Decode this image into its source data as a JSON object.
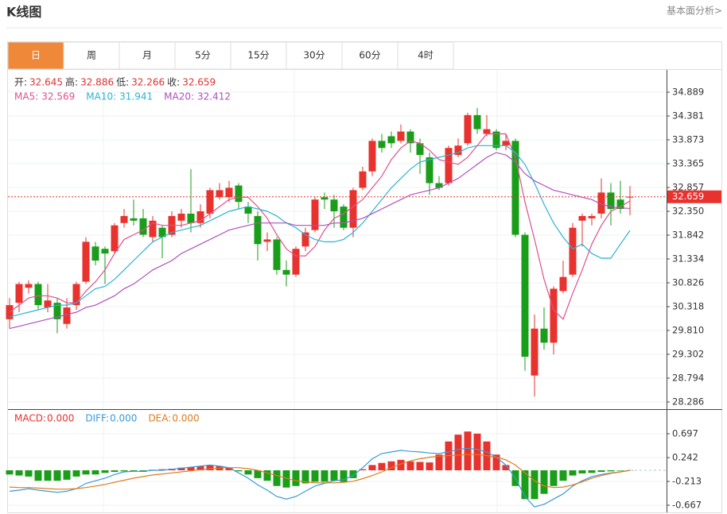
{
  "header": {
    "title": "K线图",
    "link": "基本面分析>"
  },
  "tabs": [
    "日",
    "周",
    "月",
    "5分",
    "15分",
    "30分",
    "60分",
    "4时"
  ],
  "chart_data": [
    {
      "type": "candlestick",
      "ohlc_labels": [
        "开:",
        "高:",
        "低:",
        "收:"
      ],
      "up_color": "#e8322e",
      "down_color": "#1a9e1a",
      "open": [
        30.05,
        30.4,
        30.72,
        30.8,
        30.3,
        30.4,
        29.95,
        30.35,
        30.85,
        31.6,
        31.55,
        31.5,
        32.1,
        32.2,
        32.2,
        31.8,
        32.0,
        31.85,
        32.15,
        32.3,
        32.1,
        32.3,
        32.65,
        32.65,
        32.9,
        32.45,
        32.25,
        31.7,
        31.75,
        31.1,
        31.0,
        31.6,
        31.95,
        32.65,
        32.6,
        32.45,
        32.0,
        32.85,
        33.2,
        33.85,
        33.95,
        33.85,
        34.05,
        33.8,
        33.5,
        32.95,
        32.95,
        33.55,
        33.8,
        34.4,
        34.0,
        34.05,
        33.75,
        33.85,
        31.85,
        28.85,
        29.85,
        29.55,
        30.65,
        31.0,
        32.15,
        32.2,
        32.3,
        32.75,
        32.6,
        32.645
      ],
      "high": [
        30.5,
        30.85,
        30.88,
        30.85,
        30.8,
        30.5,
        30.5,
        30.85,
        31.8,
        31.7,
        31.6,
        32.1,
        32.4,
        32.6,
        32.4,
        32.25,
        32.05,
        32.35,
        32.4,
        33.25,
        32.5,
        32.85,
        32.95,
        33.0,
        32.95,
        32.55,
        32.35,
        31.9,
        31.8,
        31.3,
        31.6,
        32.0,
        32.65,
        32.75,
        32.7,
        32.5,
        32.85,
        33.3,
        33.9,
        34.0,
        34.05,
        34.2,
        34.1,
        33.9,
        33.6,
        33.1,
        33.75,
        33.9,
        34.45,
        34.55,
        34.4,
        34.1,
        34.0,
        33.9,
        31.9,
        30.15,
        30.3,
        30.75,
        31.3,
        32.1,
        32.3,
        32.3,
        33.05,
        32.95,
        33.0,
        32.886
      ],
      "low": [
        29.85,
        30.2,
        30.6,
        30.25,
        30.2,
        29.75,
        29.85,
        30.25,
        30.8,
        31.2,
        30.8,
        31.45,
        32.0,
        32.05,
        31.8,
        31.7,
        31.35,
        31.8,
        32.0,
        31.9,
        32.0,
        32.2,
        32.6,
        32.55,
        32.4,
        32.1,
        31.3,
        31.5,
        31.0,
        30.75,
        30.95,
        31.5,
        31.9,
        32.4,
        32.0,
        31.95,
        31.8,
        32.8,
        33.1,
        33.6,
        33.7,
        33.8,
        33.6,
        33.15,
        32.7,
        32.8,
        32.9,
        33.5,
        33.75,
        34.0,
        33.95,
        33.65,
        33.65,
        31.8,
        28.95,
        28.4,
        29.4,
        29.3,
        30.6,
        30.95,
        31.6,
        32.05,
        32.2,
        32.05,
        32.3,
        32.266
      ],
      "close": [
        30.35,
        30.8,
        30.8,
        30.35,
        30.45,
        30.05,
        30.3,
        30.8,
        31.7,
        31.3,
        31.45,
        32.05,
        32.25,
        32.15,
        31.85,
        32.15,
        31.8,
        32.25,
        32.3,
        32.1,
        32.35,
        32.8,
        32.8,
        32.85,
        32.55,
        32.3,
        31.65,
        31.75,
        31.1,
        31.0,
        31.55,
        31.9,
        32.6,
        32.6,
        32.35,
        32.0,
        32.8,
        33.2,
        33.85,
        33.7,
        33.8,
        34.05,
        33.8,
        33.55,
        32.95,
        32.85,
        33.7,
        33.75,
        34.4,
        34.1,
        34.1,
        33.7,
        33.85,
        31.85,
        29.25,
        29.85,
        29.55,
        30.7,
        30.95,
        32.0,
        32.25,
        32.25,
        32.75,
        32.4,
        32.4,
        32.659
      ],
      "series": [
        {
          "name": "MA5:",
          "color": "#e0508c",
          "values": [
            30.2,
            30.35,
            30.5,
            30.55,
            30.55,
            30.5,
            30.4,
            30.4,
            30.65,
            30.85,
            31.1,
            31.45,
            31.75,
            31.85,
            31.95,
            32.1,
            32.05,
            32.05,
            32.05,
            32.1,
            32.15,
            32.3,
            32.45,
            32.6,
            32.65,
            32.65,
            32.45,
            32.2,
            31.85,
            31.55,
            31.4,
            31.4,
            31.6,
            31.95,
            32.2,
            32.3,
            32.45,
            32.6,
            32.85,
            33.1,
            33.45,
            33.7,
            33.85,
            33.8,
            33.65,
            33.45,
            33.4,
            33.35,
            33.5,
            33.75,
            34.0,
            34.0,
            34.0,
            33.5,
            32.55,
            31.75,
            30.9,
            30.25,
            30.05,
            30.6,
            31.1,
            31.65,
            32.05,
            32.35,
            32.45,
            32.569
          ]
        },
        {
          "name": "MA10:",
          "color": "#2bb3d6",
          "values": [
            30.1,
            30.15,
            30.2,
            30.25,
            30.3,
            30.35,
            30.35,
            30.4,
            30.55,
            30.7,
            30.75,
            30.9,
            31.1,
            31.3,
            31.5,
            31.7,
            31.8,
            31.9,
            31.95,
            32.0,
            32.05,
            32.15,
            32.25,
            32.35,
            32.4,
            32.45,
            32.4,
            32.35,
            32.25,
            32.1,
            32.0,
            31.85,
            31.75,
            31.7,
            31.7,
            31.75,
            31.9,
            32.1,
            32.35,
            32.6,
            32.85,
            33.05,
            33.25,
            33.4,
            33.45,
            33.5,
            33.55,
            33.6,
            33.7,
            33.75,
            33.75,
            33.75,
            33.75,
            33.6,
            33.35,
            32.95,
            32.5,
            32.1,
            31.8,
            31.55,
            31.65,
            31.45,
            31.35,
            31.35,
            31.65,
            31.941
          ]
        },
        {
          "name": "MA20:",
          "color": "#b04fc0",
          "values": [
            29.85,
            29.9,
            29.95,
            30.0,
            30.05,
            30.1,
            30.15,
            30.2,
            30.3,
            30.35,
            30.45,
            30.55,
            30.7,
            30.8,
            30.95,
            31.1,
            31.2,
            31.3,
            31.45,
            31.55,
            31.65,
            31.75,
            31.85,
            31.95,
            32.0,
            32.05,
            32.1,
            32.1,
            32.1,
            32.1,
            32.05,
            32.05,
            32.05,
            32.05,
            32.1,
            32.1,
            32.15,
            32.2,
            32.3,
            32.4,
            32.5,
            32.6,
            32.7,
            32.75,
            32.8,
            32.85,
            32.95,
            33.05,
            33.2,
            33.35,
            33.5,
            33.6,
            33.55,
            33.4,
            33.15,
            33.0,
            32.9,
            32.8,
            32.75,
            32.7,
            32.65,
            32.6,
            32.5,
            32.45,
            32.42,
            32.412
          ]
        }
      ],
      "ylim": [
        28.134,
        35.363
      ],
      "yticks": [
        34.889,
        34.381,
        33.873,
        33.365,
        {
          "value": 32.857,
          "label": "32.857"
        },
        {
          "value": 32.35,
          "label": "32.350"
        },
        31.842,
        31.334,
        30.826,
        30.318,
        {
          "value": 29.81,
          "label": "29.810"
        },
        29.302,
        28.794,
        28.286
      ],
      "grid": true
    },
    {
      "type": "macd",
      "legend_values": [
        "0.000",
        "0.000",
        "0.000"
      ],
      "histogram": {
        "name": "MACD:",
        "color": "#e8322e",
        "down_color": "#1a9e1a",
        "values": [
          -0.08,
          -0.1,
          -0.12,
          -0.2,
          -0.2,
          -0.2,
          -0.18,
          -0.12,
          -0.08,
          -0.08,
          -0.05,
          -0.03,
          -0.02,
          -0.02,
          -0.03,
          0.01,
          0.02,
          0.03,
          0.05,
          0.06,
          0.08,
          0.1,
          0.08,
          0.05,
          -0.02,
          -0.08,
          -0.15,
          -0.2,
          -0.3,
          -0.33,
          -0.3,
          -0.25,
          -0.22,
          -0.22,
          -0.2,
          -0.22,
          -0.15,
          0.02,
          0.1,
          0.14,
          0.17,
          0.2,
          0.17,
          0.16,
          0.15,
          0.3,
          0.55,
          0.68,
          0.74,
          0.7,
          0.55,
          0.3,
          0.1,
          -0.3,
          -0.55,
          -0.55,
          -0.45,
          -0.3,
          -0.2,
          -0.1,
          -0.06,
          -0.05,
          -0.03,
          -0.02,
          -0.01,
          0.0
        ]
      },
      "series": [
        {
          "name": "DIFF:",
          "color": "#3a9ad9",
          "values": [
            -0.4,
            -0.38,
            -0.35,
            -0.38,
            -0.4,
            -0.42,
            -0.4,
            -0.35,
            -0.25,
            -0.2,
            -0.15,
            -0.08,
            -0.03,
            -0.02,
            -0.02,
            0.0,
            0.0,
            0.02,
            0.04,
            0.06,
            0.08,
            0.1,
            0.08,
            0.05,
            -0.05,
            -0.15,
            -0.28,
            -0.38,
            -0.5,
            -0.55,
            -0.5,
            -0.4,
            -0.3,
            -0.25,
            -0.2,
            -0.18,
            -0.1,
            0.05,
            0.22,
            0.32,
            0.35,
            0.38,
            0.36,
            0.35,
            0.33,
            0.32,
            0.35,
            0.4,
            0.42,
            0.4,
            0.35,
            0.25,
            0.1,
            -0.15,
            -0.5,
            -0.7,
            -0.65,
            -0.55,
            -0.45,
            -0.3,
            -0.2,
            -0.12,
            -0.08,
            -0.05,
            -0.03,
            0.0
          ]
        },
        {
          "name": "DEA:",
          "color": "#e07b20",
          "values": [
            -0.32,
            -0.33,
            -0.33,
            -0.34,
            -0.35,
            -0.36,
            -0.36,
            -0.35,
            -0.33,
            -0.3,
            -0.27,
            -0.23,
            -0.19,
            -0.15,
            -0.12,
            -0.09,
            -0.07,
            -0.05,
            -0.03,
            -0.01,
            0.01,
            0.03,
            0.04,
            0.05,
            0.05,
            0.03,
            0.0,
            -0.05,
            -0.1,
            -0.15,
            -0.2,
            -0.22,
            -0.24,
            -0.24,
            -0.24,
            -0.23,
            -0.21,
            -0.16,
            -0.1,
            -0.03,
            0.05,
            0.12,
            0.18,
            0.22,
            0.25,
            0.27,
            0.28,
            0.29,
            0.3,
            0.3,
            0.28,
            0.25,
            0.2,
            0.1,
            -0.05,
            -0.2,
            -0.3,
            -0.33,
            -0.32,
            -0.28,
            -0.22,
            -0.15,
            -0.1,
            -0.06,
            -0.03,
            0.0
          ]
        }
      ],
      "ylim": [
        -0.804,
        1.152
      ],
      "yticks": [
        0.697,
        0.242,
        -0.213,
        -0.667
      ],
      "grid": true
    }
  ]
}
